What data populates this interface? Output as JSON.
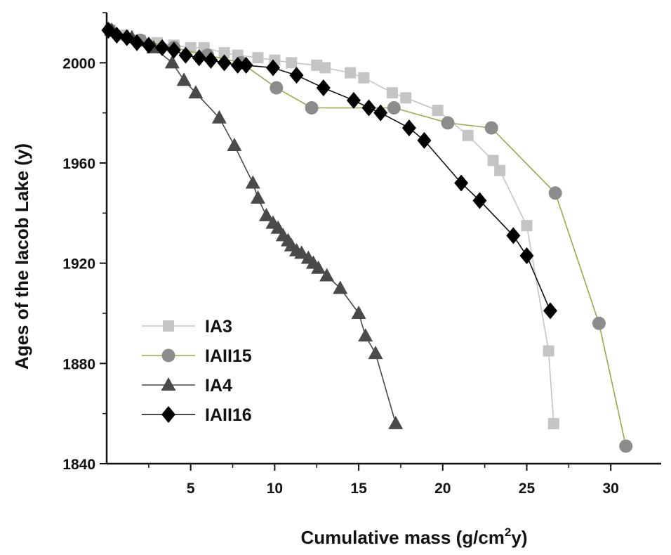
{
  "chart_data": {
    "type": "line",
    "xlabel_parts": {
      "before": "Cumulative mass (g/cm",
      "sup": "2",
      "after": "y)"
    },
    "ylabel": "Ages of the Iacob Lake (y)",
    "xlim": [
      0,
      33
    ],
    "ylim": [
      1840,
      2020
    ],
    "x_ticks": [
      "5",
      "10",
      "15",
      "20",
      "25",
      "30"
    ],
    "x_tick_values": [
      5,
      10,
      15,
      20,
      25,
      30
    ],
    "y_ticks": [
      "2000",
      "1960",
      "1920",
      "1880",
      "1840"
    ],
    "y_tick_values": [
      2000,
      1960,
      1920,
      1880,
      1840
    ],
    "grid": false,
    "legend_position": "bottom-left",
    "series": [
      {
        "name": "IA3",
        "marker": "square",
        "color": "#c4c4c4",
        "line_color": "#c4c4c4",
        "points": [
          [
            0.2,
            2013
          ],
          [
            1.0,
            2011
          ],
          [
            2.0,
            2009
          ],
          [
            3.0,
            2008
          ],
          [
            4.0,
            2007
          ],
          [
            5.0,
            2006
          ],
          [
            5.8,
            2006
          ],
          [
            7.0,
            2004
          ],
          [
            7.8,
            2003
          ],
          [
            9.0,
            2002
          ],
          [
            10.0,
            2001
          ],
          [
            11.0,
            2000
          ],
          [
            12.5,
            1999
          ],
          [
            13.0,
            1998
          ],
          [
            14.5,
            1996
          ],
          [
            15.3,
            1994
          ],
          [
            17.0,
            1988
          ],
          [
            17.8,
            1986
          ],
          [
            19.7,
            1981
          ],
          [
            21.5,
            1971
          ],
          [
            23.0,
            1961
          ],
          [
            23.4,
            1957
          ],
          [
            25.0,
            1935
          ],
          [
            26.3,
            1885
          ],
          [
            26.6,
            1856
          ]
        ]
      },
      {
        "name": "IAII15",
        "marker": "circle",
        "color": "#8c8c8c",
        "line_color": "#9aa84a",
        "points": [
          [
            0.2,
            2013
          ],
          [
            2.0,
            2009
          ],
          [
            4.0,
            2006
          ],
          [
            6.0,
            2003
          ],
          [
            8.0,
            2000
          ],
          [
            10.1,
            1990
          ],
          [
            12.2,
            1982
          ],
          [
            17.1,
            1982
          ],
          [
            20.3,
            1976
          ],
          [
            22.9,
            1974
          ],
          [
            26.7,
            1948
          ],
          [
            29.3,
            1896
          ],
          [
            30.9,
            1847
          ]
        ]
      },
      {
        "name": "IA4",
        "marker": "triangle",
        "color": "#4a4a4a",
        "line_color": "#4a4a4a",
        "points": [
          [
            0.3,
            2013
          ],
          [
            1.5,
            2010
          ],
          [
            2.8,
            2006
          ],
          [
            3.9,
            2000
          ],
          [
            4.6,
            1993
          ],
          [
            5.3,
            1988
          ],
          [
            6.7,
            1978
          ],
          [
            7.6,
            1967
          ],
          [
            8.7,
            1952
          ],
          [
            9.0,
            1946
          ],
          [
            9.5,
            1939
          ],
          [
            9.9,
            1936
          ],
          [
            10.2,
            1934
          ],
          [
            10.5,
            1931
          ],
          [
            10.8,
            1929
          ],
          [
            11.0,
            1927
          ],
          [
            11.3,
            1925
          ],
          [
            11.6,
            1924
          ],
          [
            12.0,
            1922
          ],
          [
            12.3,
            1920
          ],
          [
            12.6,
            1918
          ],
          [
            13.1,
            1915
          ],
          [
            13.9,
            1910
          ],
          [
            15.0,
            1900
          ],
          [
            15.4,
            1891
          ],
          [
            16.0,
            1884
          ],
          [
            17.2,
            1856
          ]
        ]
      },
      {
        "name": "IAII16",
        "marker": "diamond",
        "color": "#000000",
        "line_color": "#111111",
        "points": [
          [
            0.1,
            2013
          ],
          [
            0.6,
            2011
          ],
          [
            1.2,
            2010
          ],
          [
            1.8,
            2008
          ],
          [
            2.5,
            2007
          ],
          [
            3.3,
            2006
          ],
          [
            4.0,
            2005
          ],
          [
            4.7,
            2003
          ],
          [
            5.5,
            2002
          ],
          [
            6.2,
            2001
          ],
          [
            7.0,
            2000
          ],
          [
            7.8,
            1999
          ],
          [
            8.3,
            1999
          ],
          [
            9.9,
            1998
          ],
          [
            11.3,
            1995
          ],
          [
            12.9,
            1990
          ],
          [
            14.7,
            1985
          ],
          [
            15.6,
            1982
          ],
          [
            16.3,
            1980
          ],
          [
            18.0,
            1974
          ],
          [
            18.9,
            1969
          ],
          [
            21.1,
            1952
          ],
          [
            22.2,
            1945
          ],
          [
            24.2,
            1931
          ],
          [
            25.0,
            1923
          ],
          [
            26.4,
            1901
          ]
        ]
      }
    ]
  }
}
